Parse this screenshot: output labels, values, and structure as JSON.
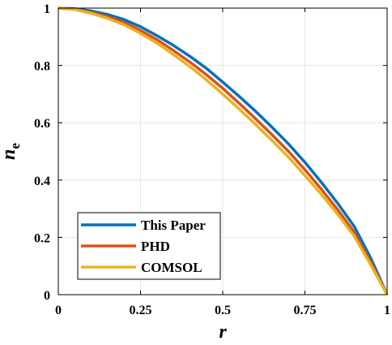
{
  "chart_data": {
    "type": "line",
    "xlabel": "r",
    "ylabel": "n",
    "ylabel_subscript": "e",
    "xlim": [
      0,
      1
    ],
    "ylim": [
      0,
      1
    ],
    "xticks": [
      0,
      0.25,
      0.5,
      0.75,
      1
    ],
    "xtick_labels": [
      "0",
      "0.25",
      "0.5",
      "0.75",
      "1"
    ],
    "yticks": [
      0,
      0.2,
      0.4,
      0.6,
      0.8,
      1
    ],
    "ytick_labels": [
      "0",
      "0.2",
      "0.4",
      "0.6",
      "0.8",
      "1"
    ],
    "grid": true,
    "legend_position": "bottom-left",
    "series": [
      {
        "name": "This Paper",
        "color": "#0072BD",
        "x": [
          0,
          0.05,
          0.1,
          0.15,
          0.2,
          0.25,
          0.3,
          0.35,
          0.4,
          0.45,
          0.5,
          0.55,
          0.6,
          0.65,
          0.7,
          0.75,
          0.8,
          0.85,
          0.9,
          0.95,
          1
        ],
        "y": [
          1.0,
          0.998,
          0.99,
          0.978,
          0.96,
          0.935,
          0.904,
          0.87,
          0.832,
          0.79,
          0.742,
          0.692,
          0.64,
          0.584,
          0.526,
          0.462,
          0.392,
          0.318,
          0.238,
          0.128,
          0.0
        ]
      },
      {
        "name": "PHD",
        "color": "#D95319",
        "x": [
          0,
          0.05,
          0.1,
          0.15,
          0.2,
          0.25,
          0.3,
          0.35,
          0.4,
          0.45,
          0.5,
          0.55,
          0.6,
          0.65,
          0.7,
          0.75,
          0.8,
          0.85,
          0.9,
          0.95,
          1
        ],
        "y": [
          1.0,
          0.996,
          0.985,
          0.97,
          0.95,
          0.922,
          0.89,
          0.852,
          0.812,
          0.768,
          0.72,
          0.668,
          0.614,
          0.558,
          0.5,
          0.436,
          0.368,
          0.296,
          0.218,
          0.114,
          0.0
        ]
      },
      {
        "name": "COMSOL",
        "color": "#EDB120",
        "x": [
          0,
          0.05,
          0.1,
          0.15,
          0.2,
          0.25,
          0.3,
          0.35,
          0.4,
          0.45,
          0.5,
          0.55,
          0.6,
          0.65,
          0.7,
          0.75,
          0.8,
          0.85,
          0.9,
          0.95,
          1
        ],
        "y": [
          1.0,
          0.995,
          0.982,
          0.964,
          0.942,
          0.912,
          0.878,
          0.838,
          0.796,
          0.75,
          0.7,
          0.648,
          0.594,
          0.538,
          0.48,
          0.416,
          0.35,
          0.28,
          0.204,
          0.104,
          0.0
        ]
      }
    ]
  }
}
